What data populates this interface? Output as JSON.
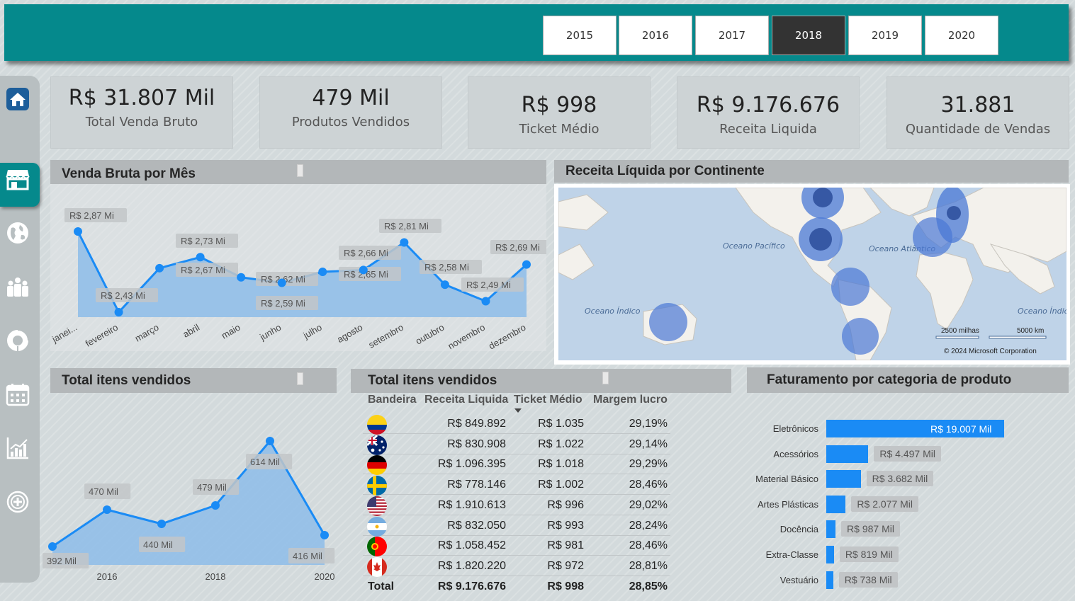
{
  "years": [
    "2015",
    "2016",
    "2017",
    "2018",
    "2019",
    "2020"
  ],
  "selected_year": "2018",
  "kpis": [
    {
      "value": "R$ 31.807 Mil",
      "label": "Total Venda Bruto"
    },
    {
      "value": "479 Mil",
      "label": "Produtos Vendidos"
    },
    {
      "value": "R$ 998",
      "label": "Ticket Médio"
    },
    {
      "value": "R$ 9.176.676",
      "label": "Receita Liquida"
    },
    {
      "value": "31.881",
      "label": "Quantidade de Vendas"
    }
  ],
  "nav": [
    "home-icon",
    "store-icon",
    "globe-icon",
    "people-icon",
    "donut-chart-icon",
    "calendar-icon",
    "bar-chart-icon",
    "add-circle-icon"
  ],
  "panels": {
    "monthly_title": "Venda Bruta por Mês",
    "map_title": "Receita Líquida por Continente",
    "items_chart_title": "Total itens vendidos",
    "items_table_title": "Total itens vendidos",
    "category_title": "Faturamento por categoria de produto"
  },
  "map": {
    "oceans": [
      "Oceano Pacífico",
      "Oceano Atlântico",
      "Oceano Índico",
      "Oceano Índico"
    ],
    "scale_miles": "2500 milhas",
    "scale_km": "5000 km",
    "copyright": "© 2024 Microsoft Corporation"
  },
  "table": {
    "headers": [
      "Bandeira",
      "Receita Liquida",
      "Ticket Médio",
      "Margem lucro"
    ],
    "rows": [
      {
        "flag": "colombia-flag-icon",
        "receita": "R$ 849.892",
        "ticket": "R$ 1.035",
        "margem": "29,19%"
      },
      {
        "flag": "australia-flag-icon",
        "receita": "R$ 830.908",
        "ticket": "R$ 1.022",
        "margem": "29,14%"
      },
      {
        "flag": "germany-flag-icon",
        "receita": "R$ 1.096.395",
        "ticket": "R$ 1.018",
        "margem": "29,29%"
      },
      {
        "flag": "sweden-flag-icon",
        "receita": "R$ 778.146",
        "ticket": "R$ 1.002",
        "margem": "28,46%"
      },
      {
        "flag": "usa-flag-icon",
        "receita": "R$ 1.910.613",
        "ticket": "R$ 996",
        "margem": "29,02%"
      },
      {
        "flag": "argentina-flag-icon",
        "receita": "R$ 832.050",
        "ticket": "R$ 993",
        "margem": "28,24%"
      },
      {
        "flag": "portugal-flag-icon",
        "receita": "R$ 1.058.452",
        "ticket": "R$ 981",
        "margem": "28,46%"
      },
      {
        "flag": "canada-flag-icon",
        "receita": "R$ 1.820.220",
        "ticket": "R$ 972",
        "margem": "28,81%"
      }
    ],
    "total": {
      "label": "Total",
      "receita": "R$ 9.176.676",
      "ticket": "R$ 998",
      "margem": "28,85%"
    }
  },
  "colors": {
    "accent": "#05898c",
    "series": "#1a8bf5",
    "area": "#8dbce9"
  },
  "chart_data": [
    {
      "type": "area",
      "title": "Venda Bruta por Mês",
      "categories": [
        "janei...",
        "fevereiro",
        "março",
        "abril",
        "maio",
        "junho",
        "julho",
        "agosto",
        "setembro",
        "outubro",
        "novembro",
        "dezembro"
      ],
      "values": [
        2.87,
        2.43,
        2.67,
        2.73,
        2.62,
        2.59,
        2.65,
        2.66,
        2.81,
        2.58,
        2.49,
        2.69
      ],
      "labels": [
        "R$ 2,87 Mi",
        "R$ 2,43 Mi",
        "R$ 2,67 Mi",
        "R$ 2,73 Mi",
        "R$ 2,62 Mi",
        "R$ 2,59 Mi",
        "R$ 2,65 Mi",
        "R$ 2,66 Mi",
        "R$ 2,81 Mi",
        "R$ 2,58 Mi",
        "R$ 2,49 Mi",
        "R$ 2,69 Mi"
      ],
      "unit": "R$ Mi"
    },
    {
      "type": "area",
      "title": "Total itens vendidos",
      "x": [
        2015,
        2016,
        2017,
        2018,
        2019,
        2020
      ],
      "xticks": [
        "2016",
        "2018",
        "2020"
      ],
      "values": [
        392,
        470,
        440,
        479,
        614,
        416
      ],
      "labels": [
        "392 Mil",
        "470 Mil",
        "440 Mil",
        "479 Mil",
        "614 Mil",
        "416 Mil"
      ],
      "unit": "Mil"
    },
    {
      "type": "bar",
      "title": "Faturamento por categoria de produto",
      "categories": [
        "Eletrônicos",
        "Acessórios",
        "Material Básico",
        "Artes Plásticas",
        "Docência",
        "Extra-Classe",
        "Vestuário"
      ],
      "values": [
        19007,
        4497,
        3682,
        2077,
        987,
        819,
        738
      ],
      "labels": [
        "R$ 19.007 Mil",
        "R$ 4.497 Mil",
        "R$ 3.682 Mil",
        "R$ 2.077 Mil",
        "R$ 987 Mil",
        "R$ 819 Mil",
        "R$ 738 Mil"
      ],
      "unit": "R$ Mil"
    }
  ]
}
